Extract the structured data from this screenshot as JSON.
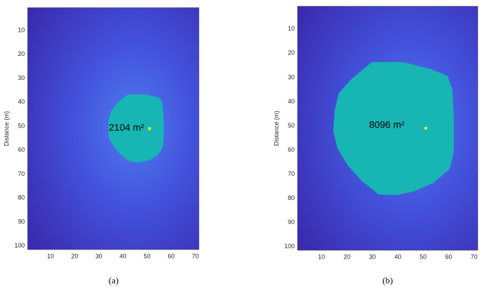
{
  "chart_data": [
    {
      "type": "heatmap",
      "ylabel": "Distance (m)",
      "annotation": "2104 m²",
      "marker": {
        "x": 51,
        "y": 51
      },
      "marker_color": "#f5e61e",
      "region_color": "#17b5b3",
      "xlim": [
        0.5,
        71.5
      ],
      "ylim": [
        101.5,
        0.5
      ],
      "xticks": [
        10,
        20,
        30,
        40,
        50,
        60,
        70
      ],
      "yticks": [
        10,
        20,
        30,
        40,
        50,
        60,
        70,
        80,
        90,
        100
      ],
      "caption": "(a)"
    },
    {
      "type": "heatmap",
      "ylabel": "Distance (m)",
      "annotation": "8096 m²",
      "marker": {
        "x": 51,
        "y": 51
      },
      "marker_color": "#f5e61e",
      "region_color": "#17b5b3",
      "xlim": [
        0.5,
        71.5
      ],
      "ylim": [
        101.5,
        0.5
      ],
      "xticks": [
        10,
        20,
        30,
        40,
        50,
        60,
        70
      ],
      "yticks": [
        10,
        20,
        30,
        40,
        50,
        60,
        70,
        80,
        90,
        100
      ],
      "caption": "(b)"
    }
  ]
}
